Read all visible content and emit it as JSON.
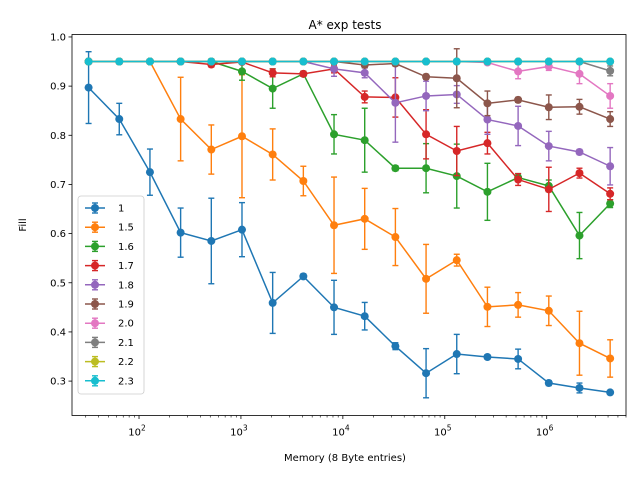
{
  "chart_data": {
    "type": "line",
    "title": "A* exp tests",
    "xlabel": "Memory (8 Byte entries)",
    "ylabel": "Fill",
    "xscale": "log",
    "xlim": [
      22,
      6000000
    ],
    "ylim": [
      0.23,
      1.005
    ],
    "yticks": [
      0.3,
      0.4,
      0.5,
      0.6,
      0.7,
      0.8,
      0.9,
      1.0
    ],
    "ytick_labels": [
      "0.3",
      "0.4",
      "0.5",
      "0.6",
      "0.7",
      "0.8",
      "0.9",
      "1.0"
    ],
    "xticks": [
      100,
      1000,
      10000,
      100000,
      1000000
    ],
    "xtick_labels": [
      {
        "base": "10",
        "exp": "2"
      },
      {
        "base": "10",
        "exp": "3"
      },
      {
        "base": "10",
        "exp": "4"
      },
      {
        "base": "10",
        "exp": "5"
      },
      {
        "base": "10",
        "exp": "6"
      }
    ],
    "grid": false,
    "legend_position": "lower-left",
    "x": [
      32,
      64,
      128,
      256,
      512,
      1024,
      2048,
      4096,
      8192,
      16384,
      32768,
      65536,
      131072,
      262144,
      524288,
      1048576,
      2097152,
      4194304
    ],
    "series": [
      {
        "name": "1",
        "color": "#1f77b4",
        "values": [
          0.897,
          0.833,
          0.725,
          0.602,
          0.585,
          0.608,
          0.459,
          0.513,
          0.45,
          0.432,
          0.371,
          0.316,
          0.355,
          0.349,
          0.345,
          0.296,
          0.286,
          0.277
        ],
        "errors": [
          0.073,
          0.032,
          0.047,
          0.05,
          0.087,
          0.055,
          0.062,
          0.005,
          0.055,
          0.028,
          0.007,
          0.05,
          0.04,
          0.004,
          0.02,
          0.005,
          0.01,
          0.003
        ]
      },
      {
        "name": "1.5",
        "color": "#ff7f0e",
        "values": [
          0.95,
          0.95,
          0.95,
          0.833,
          0.771,
          0.798,
          0.761,
          0.707,
          0.617,
          0.63,
          0.593,
          0.508,
          0.546,
          0.451,
          0.455,
          0.443,
          0.377,
          0.346
        ],
        "errors": [
          0.003,
          0.003,
          0.003,
          0.085,
          0.05,
          0.125,
          0.052,
          0.03,
          0.098,
          0.062,
          0.058,
          0.07,
          0.012,
          0.04,
          0.025,
          0.03,
          0.065,
          0.038
        ]
      },
      {
        "name": "1.6",
        "color": "#2ca02c",
        "values": [
          0.95,
          0.95,
          0.95,
          0.95,
          0.95,
          0.93,
          0.895,
          0.925,
          0.802,
          0.79,
          0.733,
          0.733,
          0.717,
          0.685,
          0.714,
          0.697,
          0.596,
          0.661
        ],
        "errors": [
          0.003,
          0.003,
          0.003,
          0.003,
          0.005,
          0.018,
          0.04,
          0.005,
          0.04,
          0.065,
          0.005,
          0.05,
          0.065,
          0.058,
          0.008,
          0.012,
          0.047,
          0.008
        ]
      },
      {
        "name": "1.7",
        "color": "#d62728",
        "values": [
          0.95,
          0.95,
          0.95,
          0.95,
          0.944,
          0.949,
          0.927,
          0.925,
          0.935,
          0.878,
          0.877,
          0.802,
          0.768,
          0.784,
          0.71,
          0.69,
          0.723,
          0.681
        ],
        "errors": [
          0.003,
          0.003,
          0.003,
          0.003,
          0.005,
          0.003,
          0.008,
          0.005,
          0.008,
          0.012,
          0.04,
          0.05,
          0.05,
          0.022,
          0.012,
          0.045,
          0.01,
          0.012
        ]
      },
      {
        "name": "1.8",
        "color": "#9467bd",
        "values": [
          0.95,
          0.95,
          0.95,
          0.95,
          0.95,
          0.95,
          0.95,
          0.95,
          0.935,
          0.927,
          0.866,
          0.88,
          0.883,
          0.832,
          0.819,
          0.778,
          0.766,
          0.737
        ],
        "errors": [
          0.003,
          0.003,
          0.003,
          0.003,
          0.003,
          0.003,
          0.003,
          0.003,
          0.015,
          0.01,
          0.08,
          0.03,
          0.018,
          0.03,
          0.04,
          0.03,
          0.005,
          0.038
        ]
      },
      {
        "name": "1.9",
        "color": "#8c564b",
        "values": [
          0.95,
          0.95,
          0.95,
          0.95,
          0.95,
          0.95,
          0.95,
          0.95,
          0.95,
          0.943,
          0.946,
          0.919,
          0.916,
          0.865,
          0.872,
          0.857,
          0.858,
          0.833
        ],
        "errors": [
          0.003,
          0.003,
          0.003,
          0.003,
          0.003,
          0.003,
          0.003,
          0.003,
          0.003,
          0.005,
          0.005,
          0.005,
          0.06,
          0.025,
          0.005,
          0.025,
          0.015,
          0.015
        ]
      },
      {
        "name": "2.0",
        "color": "#e377c2",
        "values": [
          0.95,
          0.95,
          0.95,
          0.95,
          0.95,
          0.95,
          0.95,
          0.95,
          0.95,
          0.95,
          0.95,
          0.95,
          0.95,
          0.948,
          0.93,
          0.94,
          0.925,
          0.88
        ],
        "errors": [
          0.003,
          0.003,
          0.003,
          0.003,
          0.003,
          0.003,
          0.003,
          0.003,
          0.003,
          0.003,
          0.003,
          0.003,
          0.003,
          0.003,
          0.015,
          0.008,
          0.02,
          0.025
        ]
      },
      {
        "name": "2.1",
        "color": "#7f7f7f",
        "values": [
          0.95,
          0.95,
          0.95,
          0.95,
          0.95,
          0.95,
          0.95,
          0.95,
          0.95,
          0.95,
          0.95,
          0.95,
          0.95,
          0.95,
          0.95,
          0.95,
          0.95,
          0.931
        ],
        "errors": [
          0.003,
          0.003,
          0.003,
          0.003,
          0.003,
          0.003,
          0.003,
          0.003,
          0.003,
          0.003,
          0.003,
          0.003,
          0.003,
          0.003,
          0.003,
          0.003,
          0.003,
          0.01
        ]
      },
      {
        "name": "2.2",
        "color": "#bcbd22",
        "values": [
          0.95,
          0.95,
          0.95,
          0.95,
          0.95,
          0.95,
          0.95,
          0.95,
          0.95,
          0.95,
          0.95,
          0.95,
          0.95,
          0.95,
          0.95,
          0.95,
          0.95,
          0.95
        ],
        "errors": [
          0.003,
          0.003,
          0.003,
          0.003,
          0.003,
          0.003,
          0.003,
          0.003,
          0.003,
          0.003,
          0.003,
          0.003,
          0.003,
          0.003,
          0.003,
          0.003,
          0.003,
          0.003
        ]
      },
      {
        "name": "2.3",
        "color": "#17becf",
        "values": [
          0.95,
          0.95,
          0.95,
          0.95,
          0.95,
          0.95,
          0.95,
          0.95,
          0.95,
          0.95,
          0.95,
          0.95,
          0.95,
          0.95,
          0.95,
          0.95,
          0.95,
          0.95
        ],
        "errors": [
          0.003,
          0.003,
          0.003,
          0.003,
          0.003,
          0.003,
          0.003,
          0.003,
          0.003,
          0.003,
          0.003,
          0.003,
          0.003,
          0.003,
          0.003,
          0.003,
          0.003,
          0.003
        ]
      }
    ]
  }
}
